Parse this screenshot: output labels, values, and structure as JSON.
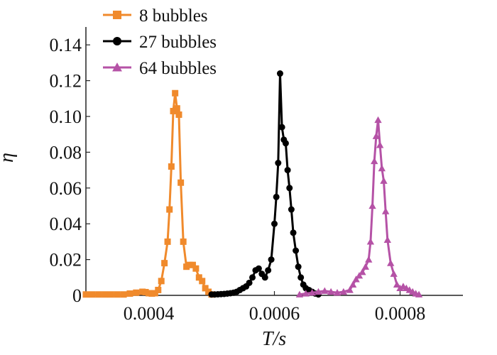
{
  "chart_data": {
    "type": "line",
    "title": "",
    "xlabel": "T/s",
    "ylabel": "η",
    "xlim": [
      0.0003,
      0.0009
    ],
    "ylim": [
      0,
      0.15
    ],
    "x_ticks": [
      0.0004,
      0.0006,
      0.0008
    ],
    "x_tick_labels": [
      "0.0004",
      "0.0006",
      "0.0008"
    ],
    "y_ticks": [
      0,
      0.02,
      0.04,
      0.06,
      0.08,
      0.1,
      0.12,
      0.14
    ],
    "y_tick_labels": [
      "0",
      "0.02",
      "0.04",
      "0.06",
      "0.08",
      "0.10",
      "0.12",
      "0.14"
    ],
    "grid": false,
    "legend_position": "top-left",
    "series": [
      {
        "name": "8 bubbles",
        "color": "#f08a2c",
        "marker": "square",
        "x": [
          0.0003,
          0.00031,
          0.00032,
          0.00033,
          0.00034,
          0.00035,
          0.00036,
          0.00037,
          0.00038,
          0.00039,
          0.000395,
          0.0004,
          0.000405,
          0.00041,
          0.000415,
          0.00042,
          0.000425,
          0.00043,
          0.000433,
          0.000436,
          0.000439,
          0.000442,
          0.000445,
          0.000448,
          0.000451,
          0.000455,
          0.00046,
          0.000465,
          0.00047,
          0.000475,
          0.00048,
          0.000485,
          0.00049,
          0.000495,
          0.0005
        ],
        "y": [
          0.0005,
          0.0005,
          0.0005,
          0.0005,
          0.0005,
          0.0005,
          0.0005,
          0.001,
          0.0015,
          0.002,
          0.0018,
          0.0012,
          0.001,
          0.0012,
          0.003,
          0.008,
          0.018,
          0.03,
          0.048,
          0.072,
          0.103,
          0.113,
          0.1045,
          0.101,
          0.063,
          0.03,
          0.016,
          0.017,
          0.017,
          0.015,
          0.01,
          0.008,
          0.004,
          0.002,
          0.0005
        ]
      },
      {
        "name": "27 bubbles",
        "color": "#000000",
        "marker": "circle",
        "x": [
          0.0005,
          0.000505,
          0.00051,
          0.000515,
          0.00052,
          0.000525,
          0.00053,
          0.000535,
          0.00054,
          0.000545,
          0.00055,
          0.000555,
          0.00056,
          0.000565,
          0.00057,
          0.000575,
          0.00058,
          0.000585,
          0.00059,
          0.000595,
          0.0006,
          0.000603,
          0.000606,
          0.000609,
          0.000612,
          0.000615,
          0.000618,
          0.000621,
          0.000624,
          0.000627,
          0.00063,
          0.000634,
          0.000638,
          0.000642,
          0.000646,
          0.00065,
          0.000655,
          0.00066,
          0.000665,
          0.00067
        ],
        "y": [
          0.0005,
          0.0005,
          0.0006,
          0.0007,
          0.0008,
          0.001,
          0.0012,
          0.0015,
          0.002,
          0.003,
          0.004,
          0.005,
          0.007,
          0.01,
          0.014,
          0.015,
          0.012,
          0.01,
          0.014,
          0.02,
          0.04,
          0.055,
          0.074,
          0.124,
          0.094,
          0.087,
          0.085,
          0.07,
          0.06,
          0.048,
          0.035,
          0.025,
          0.016,
          0.01,
          0.006,
          0.004,
          0.003,
          0.002,
          0.001,
          0.0005
        ]
      },
      {
        "name": "64 bubbles",
        "color": "#b552a6",
        "marker": "triangle",
        "x": [
          0.00064,
          0.00065,
          0.00066,
          0.00067,
          0.00068,
          0.00069,
          0.0007,
          0.00071,
          0.00072,
          0.000725,
          0.00073,
          0.000735,
          0.00074,
          0.000745,
          0.00075,
          0.000753,
          0.000756,
          0.000759,
          0.000762,
          0.000765,
          0.000768,
          0.000771,
          0.000774,
          0.000777,
          0.00078,
          0.000785,
          0.00079,
          0.000795,
          0.0008,
          0.000805,
          0.00081,
          0.000815,
          0.00082,
          0.000825,
          0.00083
        ],
        "y": [
          0.0005,
          0.001,
          0.0015,
          0.002,
          0.0025,
          0.002,
          0.0015,
          0.002,
          0.003,
          0.006,
          0.009,
          0.011,
          0.013,
          0.016,
          0.02,
          0.03,
          0.05,
          0.075,
          0.089,
          0.098,
          0.084,
          0.071,
          0.064,
          0.047,
          0.031,
          0.018,
          0.012,
          0.006,
          0.004,
          0.005,
          0.004,
          0.003,
          0.002,
          0.001,
          0.0005
        ]
      }
    ]
  }
}
